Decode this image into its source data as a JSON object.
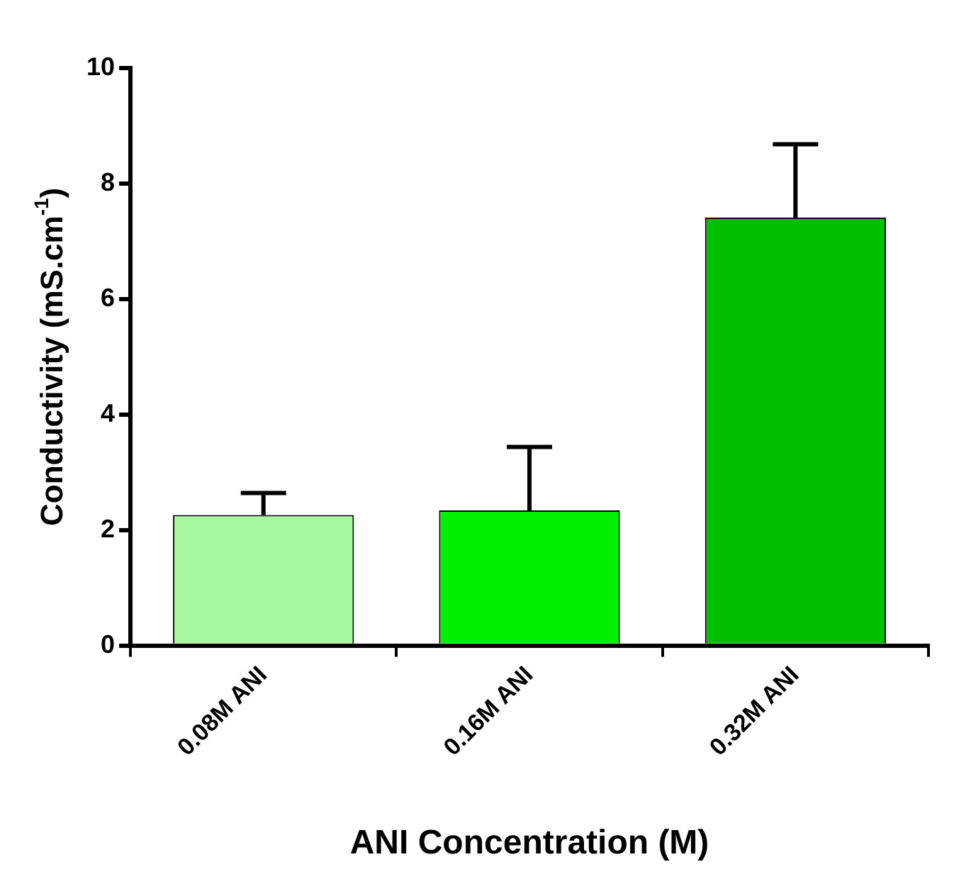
{
  "chart_data": {
    "type": "bar",
    "xlabel": "ANI Concentration (M)",
    "ylabel": "Conductivity (mS.cm$^{-1}$)",
    "categories": [
      "0.08M ANI",
      "0.16M ANI",
      "0.32M ANI"
    ],
    "values": [
      2.26,
      2.34,
      7.41
    ],
    "errors": [
      [
        2.26,
        2.64
      ],
      [
        2.34,
        3.44
      ],
      [
        7.41,
        8.68
      ]
    ],
    "colors": [
      "#a6f7a0",
      "#00f000",
      "#00c000"
    ],
    "ylim": [
      0,
      10
    ],
    "yticks": [
      0,
      2,
      4,
      6,
      8,
      10
    ],
    "grid": false,
    "legend": false
  }
}
